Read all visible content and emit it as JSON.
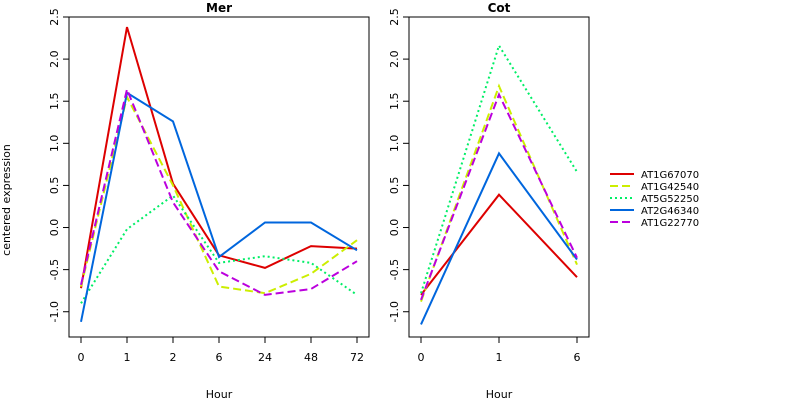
{
  "ylabel": "centered expression",
  "legend": {
    "placement": "right",
    "entries": [
      {
        "name": "AT1G67070",
        "color": "#dd0000",
        "dash": "solid"
      },
      {
        "name": "AT1G42540",
        "color": "#ccee00",
        "dash": "dashed"
      },
      {
        "name": "AT5G52250",
        "color": "#00ee66",
        "dash": "dotted"
      },
      {
        "name": "AT2G46340",
        "color": "#0066dd",
        "dash": "solid"
      },
      {
        "name": "AT1G22770",
        "color": "#bb00dd",
        "dash": "dashed"
      }
    ]
  },
  "chart_data": [
    {
      "type": "line",
      "title": "Mer",
      "xlabel": "Hour",
      "categories": [
        "0",
        "1",
        "2",
        "6",
        "24",
        "48",
        "72"
      ],
      "ylim": [
        -1.3,
        2.5
      ],
      "yticks": [
        -1.0,
        -0.5,
        0.0,
        0.5,
        1.0,
        1.5,
        2.0,
        2.5
      ],
      "grid": false,
      "series": [
        {
          "name": "AT1G67070",
          "values": [
            -0.72,
            2.38,
            0.52,
            -0.33,
            -0.48,
            -0.22,
            -0.25
          ]
        },
        {
          "name": "AT1G42540",
          "values": [
            -0.7,
            1.55,
            0.5,
            -0.7,
            -0.78,
            -0.55,
            -0.15
          ]
        },
        {
          "name": "AT5G52250",
          "values": [
            -0.9,
            -0.02,
            0.38,
            -0.42,
            -0.34,
            -0.42,
            -0.8
          ]
        },
        {
          "name": "AT2G46340",
          "values": [
            -1.12,
            1.6,
            1.26,
            -0.35,
            0.06,
            0.06,
            -0.27
          ]
        },
        {
          "name": "AT1G22770",
          "values": [
            -0.68,
            1.64,
            0.3,
            -0.52,
            -0.8,
            -0.73,
            -0.4
          ]
        }
      ]
    },
    {
      "type": "line",
      "title": "Cot",
      "xlabel": "Hour",
      "categories": [
        "0",
        "1",
        "6"
      ],
      "ylim": [
        -1.3,
        2.5
      ],
      "yticks": [
        -1.0,
        -0.5,
        0.0,
        0.5,
        1.0,
        1.5,
        2.0,
        2.5
      ],
      "grid": false,
      "series": [
        {
          "name": "AT1G67070",
          "values": [
            -0.8,
            0.39,
            -0.59
          ]
        },
        {
          "name": "AT1G42540",
          "values": [
            -0.88,
            1.68,
            -0.44
          ]
        },
        {
          "name": "AT5G52250",
          "values": [
            -0.78,
            2.16,
            0.66
          ]
        },
        {
          "name": "AT2G46340",
          "values": [
            -1.15,
            0.88,
            -0.38
          ]
        },
        {
          "name": "AT1G22770",
          "values": [
            -0.86,
            1.58,
            -0.36
          ]
        }
      ]
    }
  ]
}
